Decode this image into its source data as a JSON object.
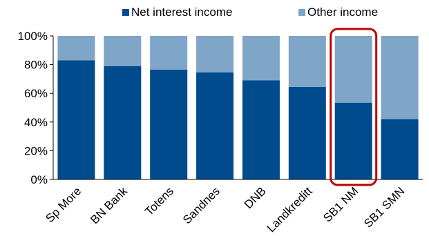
{
  "chart_data": {
    "type": "bar",
    "stacked": true,
    "categories": [
      "Sp More",
      "BN Bank",
      "Totens",
      "Sandnes",
      "DNB",
      "Landkreditt",
      "SB1 NM",
      "SB1 SMN"
    ],
    "series": [
      {
        "name": "Net interest income",
        "color": "#004B8D",
        "values": [
          83,
          79,
          76.5,
          74.5,
          69,
          64.5,
          53.5,
          42
        ]
      },
      {
        "name": "Other income",
        "color": "#7FA5C8",
        "values": [
          17,
          21,
          23.5,
          25.5,
          31,
          35.5,
          46.5,
          58
        ]
      }
    ],
    "ylim": [
      0,
      100
    ],
    "yticks": [
      0,
      20,
      40,
      60,
      80,
      100
    ],
    "ytick_labels": [
      "0%",
      "20%",
      "40%",
      "60%",
      "80%",
      "100%"
    ],
    "legend_position": "top",
    "grid": false,
    "highlight": {
      "category": "SB1 NM",
      "color": "#C00000"
    }
  }
}
